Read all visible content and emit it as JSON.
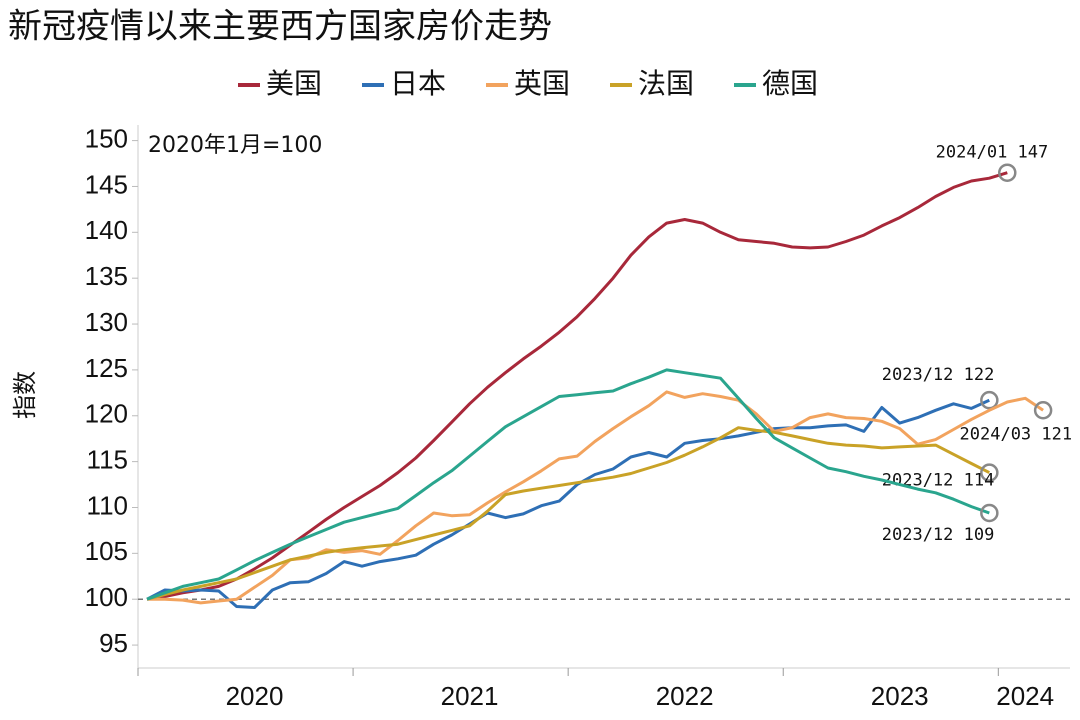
{
  "chart_data": {
    "type": "line",
    "title": "新冠疫情以来主要西方国家房价走势",
    "y_label": "指数",
    "note": "2020年1月=100",
    "categories": [
      null,
      null,
      null,
      null,
      null,
      null,
      "2020",
      null,
      null,
      null,
      null,
      null,
      null,
      null,
      null,
      null,
      null,
      null,
      "2021",
      null,
      null,
      null,
      null,
      null,
      null,
      null,
      null,
      null,
      null,
      null,
      "2022",
      null,
      null,
      null,
      null,
      null,
      null,
      null,
      null,
      null,
      null,
      null,
      "2023",
      null,
      null,
      null,
      null,
      null,
      null,
      "2024",
      null,
      null
    ],
    "ylim": [
      92.5,
      151.7
    ],
    "yticks": [
      95,
      100,
      105,
      110,
      115,
      120,
      125,
      130,
      135,
      140,
      145,
      150
    ],
    "hline": 100,
    "series": [
      {
        "name": "美国",
        "color": "#a8283a",
        "annotation": "2024/01  147",
        "values": [
          100,
          100.3,
          100.7,
          101.0,
          101.4,
          102.2,
          103.3,
          104.5,
          105.9,
          107.3,
          108.7,
          110.0,
          111.2,
          112.4,
          113.8,
          115.4,
          117.3,
          119.3,
          121.3,
          123.1,
          124.7,
          126.2,
          127.6,
          129.1,
          130.8,
          132.8,
          135.0,
          137.5,
          139.5,
          141.0,
          141.4,
          141.0,
          140.0,
          139.2,
          139.0,
          138.8,
          138.4,
          138.3,
          138.4,
          139.0,
          139.7,
          140.7,
          141.6,
          142.7,
          143.9,
          144.9,
          145.6,
          145.9,
          146.5,
          null,
          null,
          null
        ]
      },
      {
        "name": "日本",
        "color": "#2e6fb5",
        "annotation": "2023/12  122",
        "values": [
          100,
          101.0,
          100.9,
          101.0,
          100.9,
          99.2,
          99.1,
          101.0,
          101.8,
          101.9,
          102.8,
          104.1,
          103.6,
          104.1,
          104.4,
          104.8,
          106.0,
          107.0,
          108.2,
          109.4,
          108.9,
          109.3,
          110.2,
          110.7,
          112.5,
          113.6,
          114.2,
          115.5,
          116.0,
          115.5,
          117.0,
          117.3,
          117.5,
          117.8,
          118.2,
          118.6,
          118.7,
          118.7,
          118.9,
          119.0,
          118.3,
          120.9,
          119.2,
          119.8,
          120.6,
          121.3,
          120.8,
          121.7,
          null,
          null,
          null,
          null
        ]
      },
      {
        "name": "英国",
        "color": "#f2a35e",
        "annotation": "2024/03  121",
        "values": [
          100,
          100.0,
          99.9,
          99.6,
          99.8,
          100.0,
          101.3,
          102.6,
          104.3,
          104.5,
          105.4,
          105.1,
          105.3,
          104.9,
          106.4,
          108.0,
          109.4,
          109.1,
          109.2,
          110.5,
          111.7,
          112.8,
          114.0,
          115.3,
          115.6,
          117.2,
          118.6,
          119.9,
          121.1,
          122.6,
          122.0,
          122.4,
          122.1,
          121.7,
          120.2,
          118.3,
          118.7,
          119.8,
          120.2,
          119.8,
          119.7,
          119.4,
          118.6,
          116.9,
          117.4,
          118.5,
          119.6,
          120.6,
          121.5,
          121.9,
          120.6,
          null
        ]
      },
      {
        "name": "法国",
        "color": "#c9a227",
        "annotation": "2023/12  114",
        "values": [
          100,
          100.5,
          101.0,
          101.4,
          101.8,
          102.2,
          102.9,
          103.6,
          104.3,
          104.7,
          105.1,
          105.4,
          105.6,
          105.8,
          106.0,
          106.5,
          107.0,
          107.5,
          108.0,
          109.6,
          111.4,
          111.8,
          112.1,
          112.4,
          112.7,
          113.0,
          113.3,
          113.7,
          114.3,
          114.9,
          115.7,
          116.6,
          117.6,
          118.7,
          118.4,
          118.2,
          117.8,
          117.4,
          117.0,
          116.8,
          116.7,
          116.5,
          116.6,
          116.7,
          116.8,
          115.8,
          114.8,
          113.8,
          null,
          null,
          null,
          null
        ]
      },
      {
        "name": "德国",
        "color": "#2aa58e",
        "annotation": "2023/12  109",
        "values": [
          100,
          100.7,
          101.4,
          101.8,
          102.2,
          103.2,
          104.2,
          105.1,
          106.0,
          106.8,
          107.6,
          108.4,
          108.9,
          109.4,
          109.9,
          111.3,
          112.7,
          114.0,
          115.6,
          117.2,
          118.8,
          119.9,
          121.0,
          122.1,
          122.3,
          122.5,
          122.7,
          123.5,
          124.2,
          125.0,
          124.7,
          124.4,
          124.1,
          121.9,
          119.7,
          117.6,
          116.5,
          115.4,
          114.3,
          113.9,
          113.4,
          113.0,
          112.5,
          112.0,
          111.6,
          110.9,
          110.1,
          109.4,
          null,
          null,
          null,
          null
        ]
      }
    ]
  }
}
